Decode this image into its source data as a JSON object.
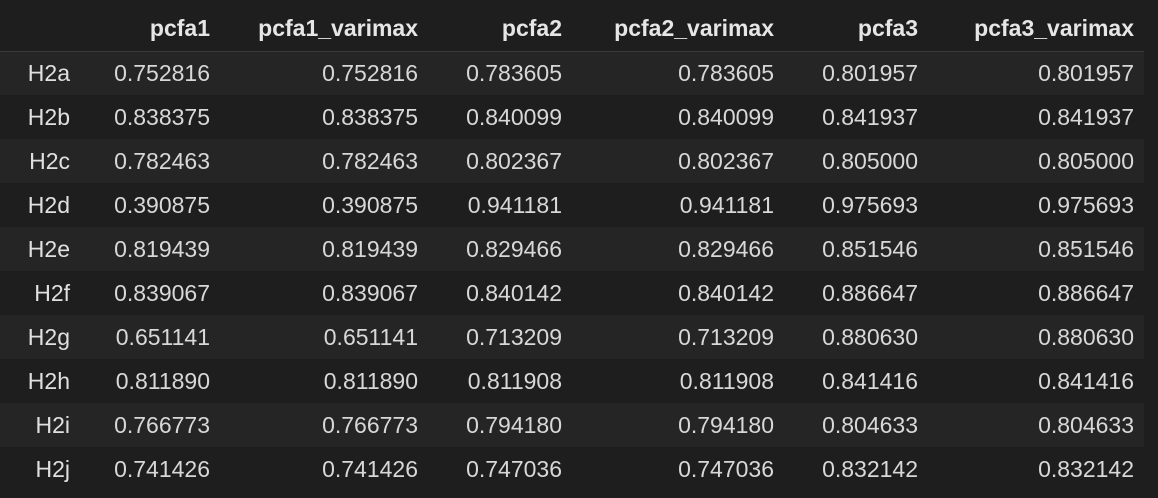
{
  "table": {
    "index_header": "",
    "columns": [
      "pcfa1",
      "pcfa1_varimax",
      "pcfa2",
      "pcfa2_varimax",
      "pcfa3",
      "pcfa3_varimax"
    ],
    "rows": [
      {
        "index": "H2a",
        "values": [
          "0.752816",
          "0.752816",
          "0.783605",
          "0.783605",
          "0.801957",
          "0.801957"
        ]
      },
      {
        "index": "H2b",
        "values": [
          "0.838375",
          "0.838375",
          "0.840099",
          "0.840099",
          "0.841937",
          "0.841937"
        ]
      },
      {
        "index": "H2c",
        "values": [
          "0.782463",
          "0.782463",
          "0.802367",
          "0.802367",
          "0.805000",
          "0.805000"
        ]
      },
      {
        "index": "H2d",
        "values": [
          "0.390875",
          "0.390875",
          "0.941181",
          "0.941181",
          "0.975693",
          "0.975693"
        ]
      },
      {
        "index": "H2e",
        "values": [
          "0.819439",
          "0.819439",
          "0.829466",
          "0.829466",
          "0.851546",
          "0.851546"
        ]
      },
      {
        "index": "H2f",
        "values": [
          "0.839067",
          "0.839067",
          "0.840142",
          "0.840142",
          "0.886647",
          "0.886647"
        ]
      },
      {
        "index": "H2g",
        "values": [
          "0.651141",
          "0.651141",
          "0.713209",
          "0.713209",
          "0.880630",
          "0.880630"
        ]
      },
      {
        "index": "H2h",
        "values": [
          "0.811890",
          "0.811890",
          "0.811908",
          "0.811908",
          "0.841416",
          "0.841416"
        ]
      },
      {
        "index": "H2i",
        "values": [
          "0.766773",
          "0.766773",
          "0.794180",
          "0.794180",
          "0.804633",
          "0.804633"
        ]
      },
      {
        "index": "H2j",
        "values": [
          "0.741426",
          "0.741426",
          "0.747036",
          "0.747036",
          "0.832142",
          "0.832142"
        ]
      }
    ]
  },
  "colors": {
    "background": "#1e1e1e",
    "row_stripe": "#252526",
    "text": "#d4d4d4"
  }
}
